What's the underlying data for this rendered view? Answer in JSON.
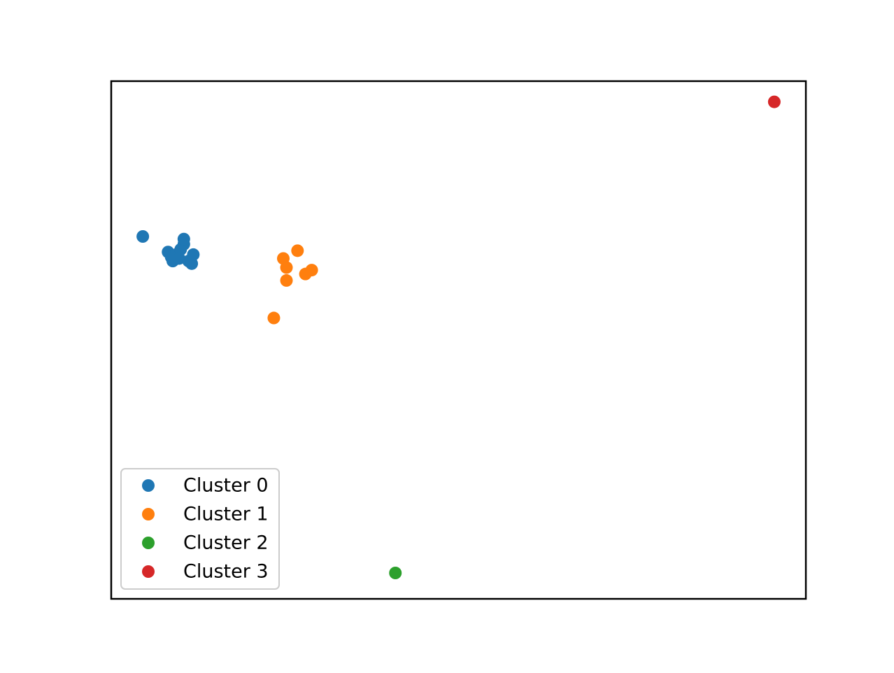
{
  "chart_data": {
    "type": "scatter",
    "title": "",
    "xlabel": "",
    "ylabel": "",
    "axes_visible": false,
    "grid": false,
    "legend_position": "lower left",
    "xlim": [
      -0.05,
      2.15
    ],
    "ylim": [
      -0.9,
      1.1
    ],
    "series": [
      {
        "name": "Cluster 0",
        "color": "#1f77b4",
        "points": [
          {
            "x": 0.05,
            "y": 0.5
          },
          {
            "x": 0.13,
            "y": 0.44
          },
          {
            "x": 0.14,
            "y": 0.42
          },
          {
            "x": 0.155,
            "y": 0.43
          },
          {
            "x": 0.17,
            "y": 0.45
          },
          {
            "x": 0.18,
            "y": 0.47
          },
          {
            "x": 0.18,
            "y": 0.49
          },
          {
            "x": 0.145,
            "y": 0.405
          },
          {
            "x": 0.165,
            "y": 0.415
          },
          {
            "x": 0.195,
            "y": 0.405
          },
          {
            "x": 0.205,
            "y": 0.395
          },
          {
            "x": 0.21,
            "y": 0.43
          }
        ]
      },
      {
        "name": "Cluster 1",
        "color": "#ff7f0e",
        "points": [
          {
            "x": 0.54,
            "y": 0.445
          },
          {
            "x": 0.495,
            "y": 0.415
          },
          {
            "x": 0.505,
            "y": 0.38
          },
          {
            "x": 0.505,
            "y": 0.33
          },
          {
            "x": 0.565,
            "y": 0.355
          },
          {
            "x": 0.585,
            "y": 0.37
          },
          {
            "x": 0.465,
            "y": 0.185
          }
        ]
      },
      {
        "name": "Cluster 2",
        "color": "#2ca02c",
        "points": [
          {
            "x": 0.85,
            "y": -0.8
          }
        ]
      },
      {
        "name": "Cluster 3",
        "color": "#d62728",
        "points": [
          {
            "x": 2.05,
            "y": 1.02
          }
        ]
      }
    ]
  }
}
